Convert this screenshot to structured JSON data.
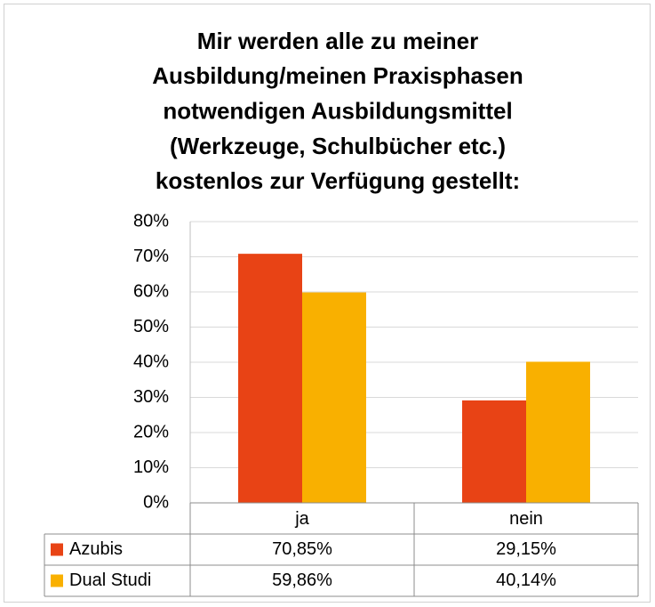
{
  "chart_data": {
    "type": "bar",
    "title": [
      "Mir werden alle zu meiner",
      "Ausbildung/meinen Praxisphasen",
      "notwendigen Ausbildungsmittel",
      "(Werkzeuge, Schulbücher etc.)",
      "kostenlos zur Verfügung gestellt:"
    ],
    "categories": [
      "ja",
      "nein"
    ],
    "series": [
      {
        "name": "Azubis",
        "color": "#e84315",
        "values": [
          70.85,
          29.15
        ],
        "value_labels": [
          "70,85%",
          "29,15%"
        ]
      },
      {
        "name": "Dual Studi",
        "color": "#f9b000",
        "values": [
          59.86,
          40.14
        ],
        "value_labels": [
          "59,86%",
          "40,14%"
        ]
      }
    ],
    "ylim": [
      0,
      80
    ],
    "yticks": [
      {
        "value": 0,
        "label": "0%"
      },
      {
        "value": 10,
        "label": "10%"
      },
      {
        "value": 20,
        "label": "20%"
      },
      {
        "value": 30,
        "label": "30%"
      },
      {
        "value": 40,
        "label": "40%"
      },
      {
        "value": 50,
        "label": "50%"
      },
      {
        "value": 60,
        "label": "60%"
      },
      {
        "value": 70,
        "label": "70%"
      },
      {
        "value": 80,
        "label": "80%"
      }
    ],
    "grid": true,
    "legend": "table"
  }
}
